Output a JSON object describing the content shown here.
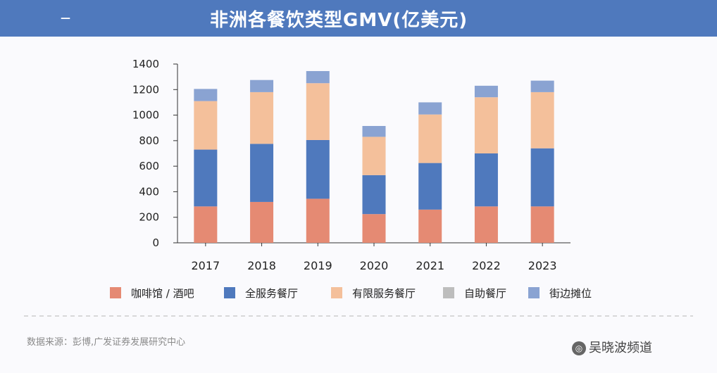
{
  "header": {
    "title": "非洲各餐饮类型GMV(亿美元)",
    "left_text": "—"
  },
  "chart_data": {
    "type": "bar",
    "stacked": true,
    "title": "非洲各餐饮类型GMV(亿美元)",
    "categories": [
      "2017",
      "2018",
      "2019",
      "2020",
      "2021",
      "2022",
      "2023"
    ],
    "ylim": [
      0,
      1400
    ],
    "yticks": [
      0,
      200,
      400,
      600,
      800,
      1000,
      1200,
      1400
    ],
    "grid": false,
    "legend_position": "bottom",
    "series": [
      {
        "name": "咖啡馆 / 酒吧",
        "color": "#e58a73",
        "values": [
          285,
          320,
          345,
          225,
          260,
          285,
          285
        ]
      },
      {
        "name": "全服务餐厅",
        "color": "#4f79bd",
        "values": [
          445,
          455,
          460,
          305,
          365,
          415,
          455
        ]
      },
      {
        "name": "有限服务餐厅",
        "color": "#f4c09b",
        "values": [
          380,
          405,
          445,
          300,
          380,
          440,
          440
        ]
      },
      {
        "name": "自助餐厅",
        "color": "#bdbdbd",
        "values": [
          0,
          0,
          0,
          0,
          0,
          0,
          0
        ]
      },
      {
        "name": "街边摊位",
        "color": "#8aa3d2",
        "values": [
          95,
          95,
          95,
          85,
          95,
          90,
          90
        ]
      }
    ]
  },
  "footer": {
    "source": "数据来源：彭博,广发证券发展研究中心",
    "brand": "吴晓波频道",
    "brand_icon": "weibo-icon"
  }
}
